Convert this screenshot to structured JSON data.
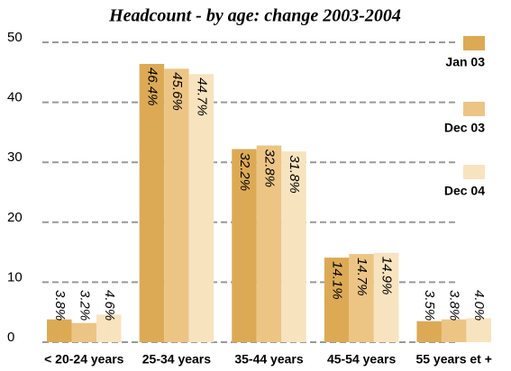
{
  "chart_data": {
    "type": "bar",
    "title": "Headcount - by age: change 2003-2004",
    "categories": [
      "< 20-24 years",
      "25-34 years",
      "35-44 years",
      "45-54 years",
      "55 years et +"
    ],
    "series": [
      {
        "name": "Jan 03",
        "color": "#dcaa55",
        "values": [
          3.8,
          46.4,
          32.2,
          14.1,
          3.5
        ],
        "value_labels": [
          "3.8%",
          "46.4%",
          "32.2%",
          "14.1%",
          "3.5%"
        ]
      },
      {
        "name": "Dec 03",
        "color": "#ecc585",
        "values": [
          3.2,
          45.6,
          32.8,
          14.7,
          3.8
        ],
        "value_labels": [
          "3.2%",
          "45.6%",
          "32.8%",
          "14.7%",
          "3.8%"
        ]
      },
      {
        "name": "Dec 04",
        "color": "#f8e3bf",
        "values": [
          4.6,
          44.7,
          31.8,
          14.9,
          4.0
        ],
        "value_labels": [
          "4.6%",
          "44.7%",
          "31.8%",
          "14.9%",
          "4.0%"
        ]
      }
    ],
    "ylim": [
      0,
      50
    ],
    "yticks": [
      0,
      10,
      20,
      30,
      40,
      50
    ],
    "grid": true,
    "legend": "top-right"
  }
}
